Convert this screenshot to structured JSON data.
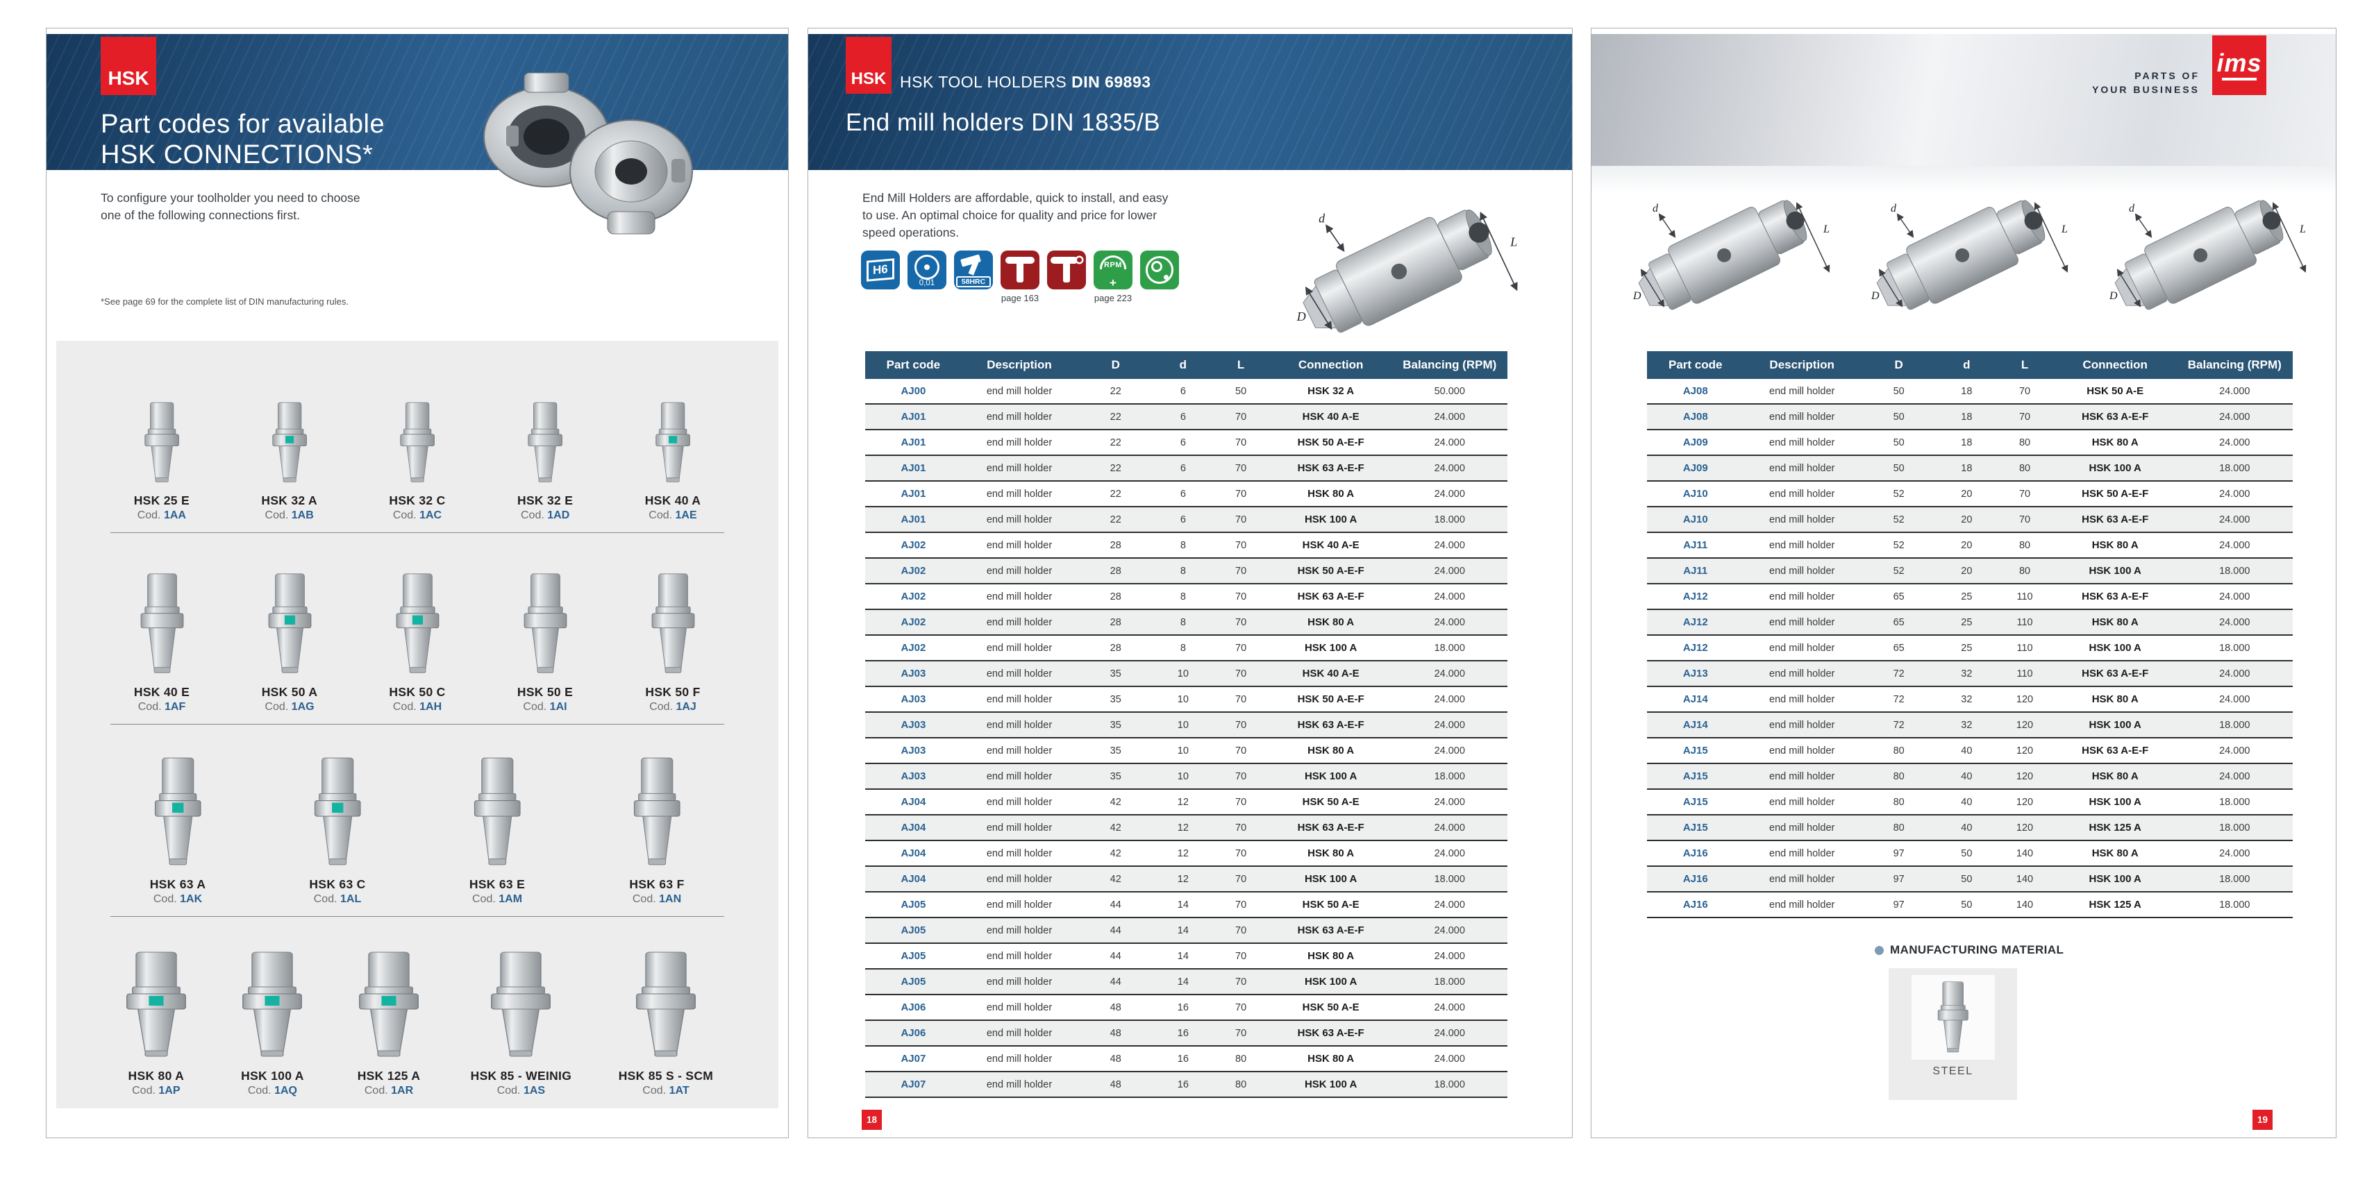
{
  "brand": {
    "hsk": "HSK",
    "ims": "ims",
    "tagline_line1": "PARTS OF",
    "tagline_line2": "YOUR BUSINESS"
  },
  "dims": {
    "D": "D",
    "d": "d",
    "L": "L"
  },
  "page_left": {
    "title_line1": "Part codes for available",
    "title_line2": "HSK CONNECTIONS*",
    "intro_line1": "To configure your toolholder you need to choose",
    "intro_line2": "one of the following connections first.",
    "footnote": "*See page 69 for the complete list of DIN manufacturing rules.",
    "cod_label": "Cod.",
    "rows": [
      [
        {
          "name": "HSK 25 E",
          "code": "1AA",
          "accent": false
        },
        {
          "name": "HSK 32 A",
          "code": "1AB",
          "accent": true
        },
        {
          "name": "HSK 32 C",
          "code": "1AC",
          "accent": false
        },
        {
          "name": "HSK 32 E",
          "code": "1AD",
          "accent": false
        },
        {
          "name": "HSK 40 A",
          "code": "1AE",
          "accent": true
        }
      ],
      [
        {
          "name": "HSK 40 E",
          "code": "1AF",
          "accent": false
        },
        {
          "name": "HSK 50 A",
          "code": "1AG",
          "accent": true
        },
        {
          "name": "HSK 50 C",
          "code": "1AH",
          "accent": true
        },
        {
          "name": "HSK 50 E",
          "code": "1AI",
          "accent": false
        },
        {
          "name": "HSK 50 F",
          "code": "1AJ",
          "accent": false
        }
      ],
      [
        {
          "name": "HSK 63 A",
          "code": "1AK",
          "accent": true
        },
        {
          "name": "HSK 63 C",
          "code": "1AL",
          "accent": true
        },
        {
          "name": "HSK 63 E",
          "code": "1AM",
          "accent": false
        },
        {
          "name": "HSK 63 F",
          "code": "1AN",
          "accent": false
        }
      ],
      [
        {
          "name": "HSK 80 A",
          "code": "1AP",
          "accent": true
        },
        {
          "name": "HSK 100 A",
          "code": "1AQ",
          "accent": true
        },
        {
          "name": "HSK 125 A",
          "code": "1AR",
          "accent": true
        },
        {
          "name": "HSK 85 - WEINIG",
          "code": "1AS",
          "accent": false
        },
        {
          "name": "HSK 85 S - SCM",
          "code": "1AT",
          "accent": false
        }
      ]
    ]
  },
  "page_middle": {
    "kicker_regular": "HSK TOOL HOLDERS ",
    "kicker_bold": "DIN 69893",
    "title": "End mill holders DIN 1835/B",
    "intro_line1": "End Mill Holders are affordable, quick to install, and easy",
    "intro_line2": "to use.  An optimal choice for quality and price for lower",
    "intro_line3": "speed operations.",
    "icons": {
      "h6": "H6",
      "runout": "0,01",
      "hardness": "58HRC",
      "wrench_caption": "page 163",
      "rpm": "RPM",
      "rpm_plus": "+",
      "rpm_caption": "page 223"
    },
    "table": {
      "headers": [
        "Part code",
        "Description",
        "D",
        "d",
        "L",
        "Connection",
        "Balancing (RPM)"
      ],
      "rows": [
        [
          "AJ00",
          "end mill holder",
          "22",
          "6",
          "50",
          "HSK 32 A",
          "50.000"
        ],
        [
          "AJ01",
          "end mill holder",
          "22",
          "6",
          "70",
          "HSK 40 A-E",
          "24.000"
        ],
        [
          "AJ01",
          "end mill holder",
          "22",
          "6",
          "70",
          "HSK 50 A-E-F",
          "24.000"
        ],
        [
          "AJ01",
          "end mill holder",
          "22",
          "6",
          "70",
          "HSK 63 A-E-F",
          "24.000"
        ],
        [
          "AJ01",
          "end mill holder",
          "22",
          "6",
          "70",
          "HSK 80 A",
          "24.000"
        ],
        [
          "AJ01",
          "end mill holder",
          "22",
          "6",
          "70",
          "HSK 100 A",
          "18.000"
        ],
        [
          "AJ02",
          "end mill holder",
          "28",
          "8",
          "70",
          "HSK 40 A-E",
          "24.000"
        ],
        [
          "AJ02",
          "end mill holder",
          "28",
          "8",
          "70",
          "HSK 50 A-E-F",
          "24.000"
        ],
        [
          "AJ02",
          "end mill holder",
          "28",
          "8",
          "70",
          "HSK 63 A-E-F",
          "24.000"
        ],
        [
          "AJ02",
          "end mill holder",
          "28",
          "8",
          "70",
          "HSK 80 A",
          "24.000"
        ],
        [
          "AJ02",
          "end mill holder",
          "28",
          "8",
          "70",
          "HSK 100 A",
          "18.000"
        ],
        [
          "AJ03",
          "end mill holder",
          "35",
          "10",
          "70",
          "HSK 40 A-E",
          "24.000"
        ],
        [
          "AJ03",
          "end mill holder",
          "35",
          "10",
          "70",
          "HSK 50 A-E-F",
          "24.000"
        ],
        [
          "AJ03",
          "end mill holder",
          "35",
          "10",
          "70",
          "HSK 63 A-E-F",
          "24.000"
        ],
        [
          "AJ03",
          "end mill holder",
          "35",
          "10",
          "70",
          "HSK 80 A",
          "24.000"
        ],
        [
          "AJ03",
          "end mill holder",
          "35",
          "10",
          "70",
          "HSK 100 A",
          "18.000"
        ],
        [
          "AJ04",
          "end mill holder",
          "42",
          "12",
          "70",
          "HSK 50 A-E",
          "24.000"
        ],
        [
          "AJ04",
          "end mill holder",
          "42",
          "12",
          "70",
          "HSK 63 A-E-F",
          "24.000"
        ],
        [
          "AJ04",
          "end mill holder",
          "42",
          "12",
          "70",
          "HSK 80 A",
          "24.000"
        ],
        [
          "AJ04",
          "end mill holder",
          "42",
          "12",
          "70",
          "HSK 100 A",
          "18.000"
        ],
        [
          "AJ05",
          "end mill holder",
          "44",
          "14",
          "70",
          "HSK 50 A-E",
          "24.000"
        ],
        [
          "AJ05",
          "end mill holder",
          "44",
          "14",
          "70",
          "HSK 63 A-E-F",
          "24.000"
        ],
        [
          "AJ05",
          "end mill holder",
          "44",
          "14",
          "70",
          "HSK 80 A",
          "24.000"
        ],
        [
          "AJ05",
          "end mill holder",
          "44",
          "14",
          "70",
          "HSK 100 A",
          "18.000"
        ],
        [
          "AJ06",
          "end mill holder",
          "48",
          "16",
          "70",
          "HSK 50 A-E",
          "24.000"
        ],
        [
          "AJ06",
          "end mill holder",
          "48",
          "16",
          "70",
          "HSK 63 A-E-F",
          "24.000"
        ],
        [
          "AJ07",
          "end mill holder",
          "48",
          "16",
          "80",
          "HSK 80 A",
          "24.000"
        ],
        [
          "AJ07",
          "end mill holder",
          "48",
          "16",
          "80",
          "HSK 100 A",
          "18.000"
        ]
      ]
    },
    "page_number": "18"
  },
  "page_right": {
    "table": {
      "headers": [
        "Part code",
        "Description",
        "D",
        "d",
        "L",
        "Connection",
        "Balancing (RPM)"
      ],
      "rows": [
        [
          "AJ08",
          "end mill holder",
          "50",
          "18",
          "70",
          "HSK 50 A-E",
          "24.000"
        ],
        [
          "AJ08",
          "end mill holder",
          "50",
          "18",
          "70",
          "HSK 63 A-E-F",
          "24.000"
        ],
        [
          "AJ09",
          "end mill holder",
          "50",
          "18",
          "80",
          "HSK 80 A",
          "24.000"
        ],
        [
          "AJ09",
          "end mill holder",
          "50",
          "18",
          "80",
          "HSK 100 A",
          "18.000"
        ],
        [
          "AJ10",
          "end mill holder",
          "52",
          "20",
          "70",
          "HSK 50 A-E-F",
          "24.000"
        ],
        [
          "AJ10",
          "end mill holder",
          "52",
          "20",
          "70",
          "HSK 63 A-E-F",
          "24.000"
        ],
        [
          "AJ11",
          "end mill holder",
          "52",
          "20",
          "80",
          "HSK 80 A",
          "24.000"
        ],
        [
          "AJ11",
          "end mill holder",
          "52",
          "20",
          "80",
          "HSK 100 A",
          "18.000"
        ],
        [
          "AJ12",
          "end mill holder",
          "65",
          "25",
          "110",
          "HSK 63 A-E-F",
          "24.000"
        ],
        [
          "AJ12",
          "end mill holder",
          "65",
          "25",
          "110",
          "HSK 80 A",
          "24.000"
        ],
        [
          "AJ12",
          "end mill holder",
          "65",
          "25",
          "110",
          "HSK 100 A",
          "18.000"
        ],
        [
          "AJ13",
          "end mill holder",
          "72",
          "32",
          "110",
          "HSK 63 A-E-F",
          "24.000"
        ],
        [
          "AJ14",
          "end mill holder",
          "72",
          "32",
          "120",
          "HSK 80 A",
          "24.000"
        ],
        [
          "AJ14",
          "end mill holder",
          "72",
          "32",
          "120",
          "HSK 100 A",
          "18.000"
        ],
        [
          "AJ15",
          "end mill holder",
          "80",
          "40",
          "120",
          "HSK 63 A-E-F",
          "24.000"
        ],
        [
          "AJ15",
          "end mill holder",
          "80",
          "40",
          "120",
          "HSK 80 A",
          "24.000"
        ],
        [
          "AJ15",
          "end mill holder",
          "80",
          "40",
          "120",
          "HSK 100 A",
          "18.000"
        ],
        [
          "AJ15",
          "end mill holder",
          "80",
          "40",
          "120",
          "HSK 125 A",
          "18.000"
        ],
        [
          "AJ16",
          "end mill holder",
          "97",
          "50",
          "140",
          "HSK 80 A",
          "24.000"
        ],
        [
          "AJ16",
          "end mill holder",
          "97",
          "50",
          "140",
          "HSK 100 A",
          "18.000"
        ],
        [
          "AJ16",
          "end mill holder",
          "97",
          "50",
          "140",
          "HSK 125 A",
          "18.000"
        ]
      ]
    },
    "material_heading": "MANUFACTURING MATERIAL",
    "material_label": "STEEL",
    "page_number": "19"
  }
}
